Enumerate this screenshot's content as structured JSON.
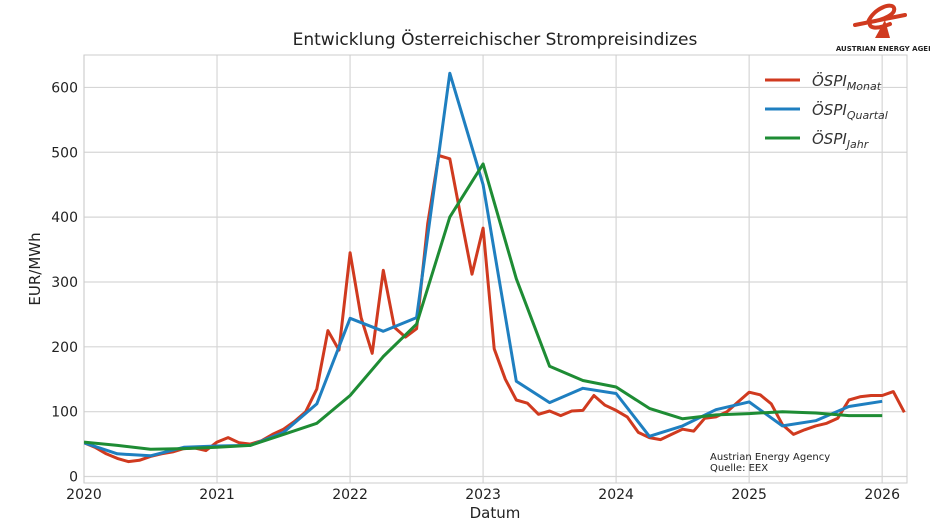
{
  "chart_data": {
    "type": "line",
    "title": "Entwicklung Österreichischer Strompreisindizes",
    "xlabel": "Datum",
    "ylabel": "EUR/MWh",
    "xlim": [
      "2020-01",
      "2026-03"
    ],
    "ylim": [
      -10,
      650
    ],
    "xticks": [
      "2020",
      "2021",
      "2022",
      "2023",
      "2024",
      "2025",
      "2026"
    ],
    "yticks": [
      0,
      100,
      200,
      300,
      400,
      500,
      600
    ],
    "grid": true,
    "legend_position": "top-right",
    "series": [
      {
        "name": "ÖSPI",
        "subscript": "Monat",
        "color": "#d03a1f",
        "x": [
          "2020-01",
          "2020-02",
          "2020-03",
          "2020-04",
          "2020-05",
          "2020-06",
          "2020-07",
          "2020-08",
          "2020-09",
          "2020-10",
          "2020-11",
          "2020-12",
          "2021-01",
          "2021-02",
          "2021-03",
          "2021-04",
          "2021-05",
          "2021-06",
          "2021-07",
          "2021-08",
          "2021-09",
          "2021-10",
          "2021-11",
          "2021-12",
          "2022-01",
          "2022-02",
          "2022-03",
          "2022-04",
          "2022-05",
          "2022-06",
          "2022-07",
          "2022-08",
          "2022-09",
          "2022-10",
          "2022-11",
          "2022-12",
          "2023-01",
          "2023-02",
          "2023-03",
          "2023-04",
          "2023-05",
          "2023-06",
          "2023-07",
          "2023-08",
          "2023-09",
          "2023-10",
          "2023-11",
          "2023-12",
          "2024-01",
          "2024-02",
          "2024-03",
          "2024-04",
          "2024-05",
          "2024-06",
          "2024-07",
          "2024-08",
          "2024-09",
          "2024-10",
          "2024-11",
          "2024-12",
          "2025-01",
          "2025-02",
          "2025-03",
          "2025-04",
          "2025-05",
          "2025-06",
          "2025-07",
          "2025-08",
          "2025-09",
          "2025-10",
          "2025-11",
          "2025-12",
          "2026-01",
          "2026-02",
          "2026-03"
        ],
        "values": [
          52,
          45,
          35,
          28,
          23,
          25,
          31,
          35,
          38,
          43,
          44,
          40,
          53,
          60,
          52,
          50,
          55,
          65,
          73,
          85,
          100,
          135,
          225,
          195,
          345,
          245,
          190,
          318,
          230,
          215,
          228,
          390,
          495,
          490,
          400,
          312,
          383,
          197,
          150,
          118,
          113,
          96,
          101,
          94,
          101,
          102,
          125,
          110,
          102,
          92,
          68,
          60,
          57,
          65,
          73,
          70,
          90,
          92,
          100,
          115,
          130,
          126,
          112,
          80,
          65,
          72,
          78,
          82,
          90,
          118,
          123,
          125,
          125,
          131,
          99
        ]
      },
      {
        "name": "ÖSPI",
        "subscript": "Quartal",
        "color": "#1f7fc0",
        "x": [
          "2020-01",
          "2020-04",
          "2020-07",
          "2020-10",
          "2021-01",
          "2021-04",
          "2021-07",
          "2021-10",
          "2022-01",
          "2022-04",
          "2022-07",
          "2022-10",
          "2023-01",
          "2023-04",
          "2023-07",
          "2023-10",
          "2024-01",
          "2024-04",
          "2024-07",
          "2024-10",
          "2025-01",
          "2025-04",
          "2025-07",
          "2025-10",
          "2026-01"
        ],
        "values": [
          52,
          35,
          32,
          45,
          47,
          48,
          68,
          112,
          244,
          224,
          245,
          622,
          450,
          147,
          114,
          136,
          128,
          62,
          78,
          103,
          115,
          78,
          86,
          108,
          116
        ]
      },
      {
        "name": "ÖSPI",
        "subscript": "Jahr",
        "color": "#1e8c34",
        "x": [
          "2020-01",
          "2020-04",
          "2020-07",
          "2020-10",
          "2021-01",
          "2021-04",
          "2021-07",
          "2021-10",
          "2022-01",
          "2022-04",
          "2022-07",
          "2022-10",
          "2023-01",
          "2023-04",
          "2023-07",
          "2023-10",
          "2024-01",
          "2024-04",
          "2024-07",
          "2024-10",
          "2025-01",
          "2025-04",
          "2025-07",
          "2025-10",
          "2026-01"
        ],
        "values": [
          53,
          48,
          42,
          43,
          45,
          48,
          65,
          82,
          125,
          185,
          235,
          400,
          482,
          305,
          170,
          148,
          138,
          105,
          89,
          95,
          97,
          100,
          98,
          94,
          94
        ]
      }
    ],
    "annotation": [
      "Austrian Energy Agency",
      "Quelle: EEX"
    ]
  },
  "logo": {
    "text": "AUSTRIAN ENERGY AGENCY",
    "color": "#d03a1f"
  }
}
